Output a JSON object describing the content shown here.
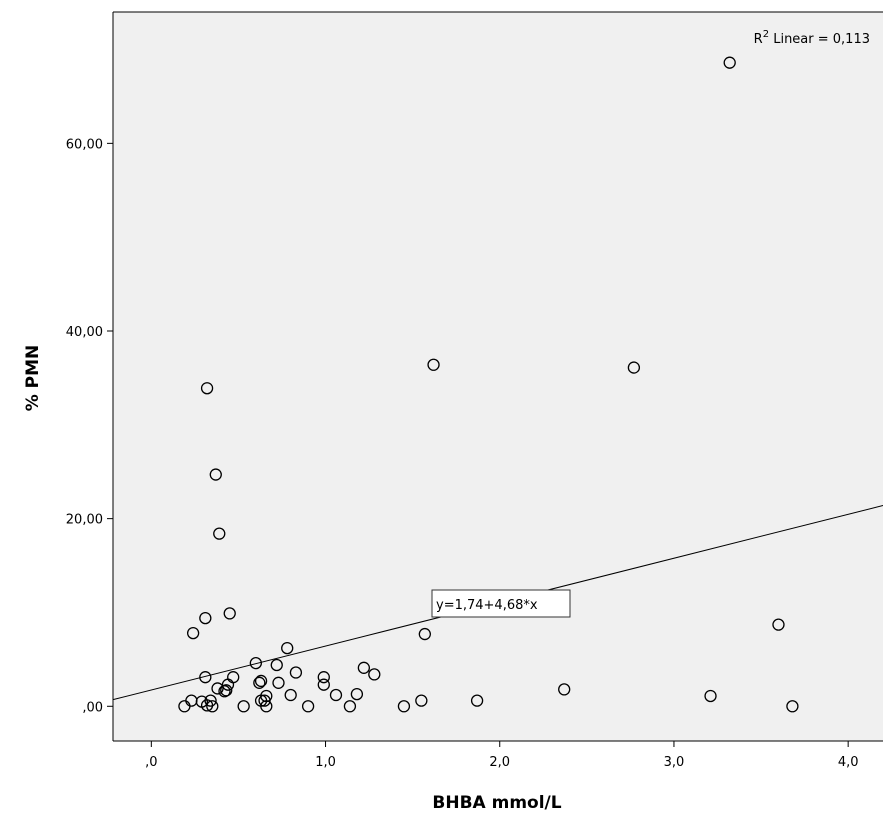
{
  "chart_data": {
    "type": "scatter",
    "xlabel": "BHBA  mmol/L",
    "ylabel": "% PMN",
    "xlim": [
      -0.22,
      4.2
    ],
    "ylim": [
      -3.7,
      74
    ],
    "x_ticks": [
      0,
      1,
      2,
      3,
      4
    ],
    "x_tick_labels": [
      ",0",
      "1,0",
      "2,0",
      "3,0",
      "4,0"
    ],
    "y_ticks": [
      0,
      20,
      40,
      60
    ],
    "y_tick_labels": [
      ",00",
      "20,00",
      "40,00",
      "60,00"
    ],
    "grid": false,
    "background_color": "#f0f0f0",
    "marker": "open-circle",
    "points": [
      {
        "x": 0.19,
        "y": 0.0
      },
      {
        "x": 0.23,
        "y": 0.6
      },
      {
        "x": 0.24,
        "y": 7.8
      },
      {
        "x": 0.29,
        "y": 0.5
      },
      {
        "x": 0.31,
        "y": 3.1
      },
      {
        "x": 0.31,
        "y": 9.4
      },
      {
        "x": 0.32,
        "y": 0.1
      },
      {
        "x": 0.32,
        "y": 33.9
      },
      {
        "x": 0.34,
        "y": 0.6
      },
      {
        "x": 0.35,
        "y": 0.0
      },
      {
        "x": 0.37,
        "y": 24.7
      },
      {
        "x": 0.38,
        "y": 1.9
      },
      {
        "x": 0.39,
        "y": 18.4
      },
      {
        "x": 0.42,
        "y": 1.6
      },
      {
        "x": 0.43,
        "y": 1.7
      },
      {
        "x": 0.44,
        "y": 2.3
      },
      {
        "x": 0.45,
        "y": 9.9
      },
      {
        "x": 0.47,
        "y": 3.1
      },
      {
        "x": 0.53,
        "y": 0.0
      },
      {
        "x": 0.6,
        "y": 4.6
      },
      {
        "x": 0.62,
        "y": 2.5
      },
      {
        "x": 0.63,
        "y": 2.7
      },
      {
        "x": 0.63,
        "y": 0.6
      },
      {
        "x": 0.65,
        "y": 0.6
      },
      {
        "x": 0.66,
        "y": 1.1
      },
      {
        "x": 0.66,
        "y": 0.0
      },
      {
        "x": 0.72,
        "y": 4.4
      },
      {
        "x": 0.73,
        "y": 2.5
      },
      {
        "x": 0.78,
        "y": 6.2
      },
      {
        "x": 0.8,
        "y": 1.2
      },
      {
        "x": 0.83,
        "y": 3.6
      },
      {
        "x": 0.9,
        "y": 0.0
      },
      {
        "x": 0.99,
        "y": 3.1
      },
      {
        "x": 0.99,
        "y": 2.3
      },
      {
        "x": 1.06,
        "y": 1.2
      },
      {
        "x": 1.14,
        "y": 0.0
      },
      {
        "x": 1.18,
        "y": 1.3
      },
      {
        "x": 1.22,
        "y": 4.1
      },
      {
        "x": 1.28,
        "y": 3.4
      },
      {
        "x": 1.45,
        "y": 0.0
      },
      {
        "x": 1.55,
        "y": 0.6
      },
      {
        "x": 1.57,
        "y": 7.7
      },
      {
        "x": 1.62,
        "y": 36.4
      },
      {
        "x": 1.87,
        "y": 0.6
      },
      {
        "x": 2.37,
        "y": 1.8
      },
      {
        "x": 2.77,
        "y": 36.1
      },
      {
        "x": 3.21,
        "y": 1.1
      },
      {
        "x": 3.32,
        "y": 68.6
      },
      {
        "x": 3.6,
        "y": 8.7
      },
      {
        "x": 3.68,
        "y": 0.0
      }
    ],
    "fit_line": {
      "intercept": 1.74,
      "slope": 4.68
    },
    "equation_label": "y=1,74+4,68*x",
    "r_squared": {
      "prefix": "R",
      "superscript": "2",
      "text": " Linear = 0,113"
    }
  }
}
